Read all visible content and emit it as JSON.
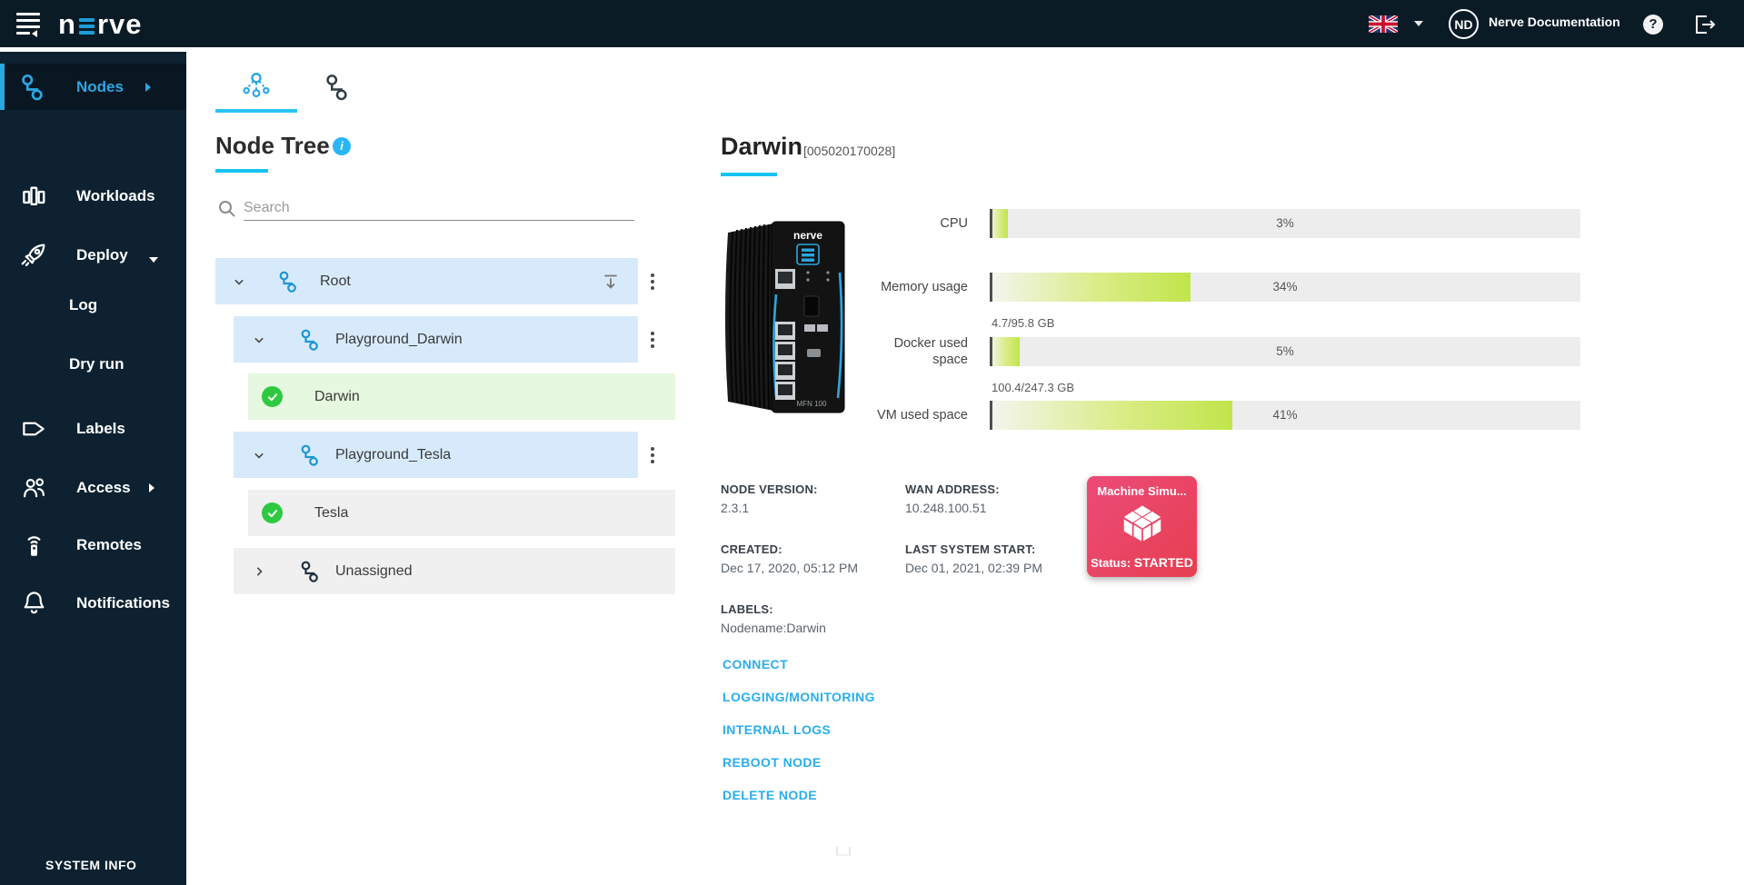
{
  "colors": {
    "header_bg": "#0B1B26",
    "sidebar_bg": "#0D2130",
    "accent_blue": "#29ABE2",
    "tab_underline": "#29C3F5",
    "link_blue": "#29AEEA",
    "row_blue": "#D7EAFB",
    "row_green": "#E6F8E0",
    "row_gray": "#F0F0F0",
    "status_green": "#2EC940",
    "gauge_lime": "#C1E54B",
    "tile_gradient_start": "#EC4B78",
    "tile_gradient_end": "#E63F51"
  },
  "header": {
    "brand_prefix": "n",
    "brand_suffix": "rve",
    "language_flag": "uk-flag",
    "avatar_initials": "ND",
    "account_label": "Nerve Documentation",
    "help_glyph": "?"
  },
  "sidebar": {
    "items": [
      {
        "label": "Nodes",
        "icon": "nodes-icon",
        "active": true,
        "has_arrow": "right"
      },
      {
        "label": "Workloads",
        "icon": "workloads-icon"
      },
      {
        "label": "Deploy",
        "icon": "deploy-icon",
        "has_arrow": "down"
      },
      {
        "label": "Log",
        "sub_item": true
      },
      {
        "label": "Dry run",
        "sub_item": true
      },
      {
        "label": "Labels",
        "icon": "labels-icon"
      },
      {
        "label": "Access",
        "icon": "access-icon",
        "has_arrow": "right"
      },
      {
        "label": "Remotes",
        "icon": "remotes-icon"
      },
      {
        "label": "Notifications",
        "icon": "notifications-icon"
      }
    ],
    "footer_label": "SYSTEM INFO"
  },
  "tree_panel": {
    "title": "Node Tree",
    "info_glyph": "i",
    "search_placeholder": "Search",
    "rows": [
      {
        "label": "Root",
        "kind": "group",
        "state": "expanded",
        "highlight": "blue",
        "has_pin": true,
        "has_menu": true
      },
      {
        "label": "Playground_Darwin",
        "kind": "group",
        "state": "expanded",
        "highlight": "blue",
        "has_menu": true
      },
      {
        "label": "Darwin",
        "kind": "node",
        "status": "online",
        "highlight": "green"
      },
      {
        "label": "Playground_Tesla",
        "kind": "group",
        "state": "expanded",
        "highlight": "blue",
        "has_menu": true
      },
      {
        "label": "Tesla",
        "kind": "node",
        "status": "online",
        "highlight": "gray"
      },
      {
        "label": "Unassigned",
        "kind": "group",
        "state": "collapsed",
        "highlight": "gray"
      }
    ]
  },
  "details": {
    "node_name": "Darwin",
    "serial_number": "[005020170028]",
    "gauges": [
      {
        "label": "CPU",
        "percent": 3,
        "percent_label": "3%"
      },
      {
        "label": "Memory usage",
        "percent": 34,
        "percent_label": "34%"
      },
      {
        "label": "Docker used space",
        "percent": 5,
        "percent_label": "5%",
        "usage": "4.7/95.8 GB"
      },
      {
        "label": "VM used space",
        "percent": 41,
        "percent_label": "41%",
        "usage": "100.4/247.3 GB"
      }
    ],
    "fields": [
      {
        "label": "NODE VERSION:",
        "value": "2.3.1"
      },
      {
        "label": "WAN ADDRESS:",
        "value": "10.248.100.51"
      },
      {
        "label": "CREATED:",
        "value": "Dec 17, 2020, 05:12 PM"
      },
      {
        "label": "LAST SYSTEM START:",
        "value": "Dec 01, 2021, 02:39 PM"
      },
      {
        "label": "LABELS:",
        "value": "Nodename:Darwin"
      }
    ],
    "workload_tile": {
      "title": "Machine Simu...",
      "status_label": "Status:",
      "status_value": "STARTED"
    },
    "links": [
      "CONNECT",
      "LOGGING/MONITORING",
      "INTERNAL LOGS",
      "REBOOT NODE",
      "DELETE NODE"
    ]
  }
}
